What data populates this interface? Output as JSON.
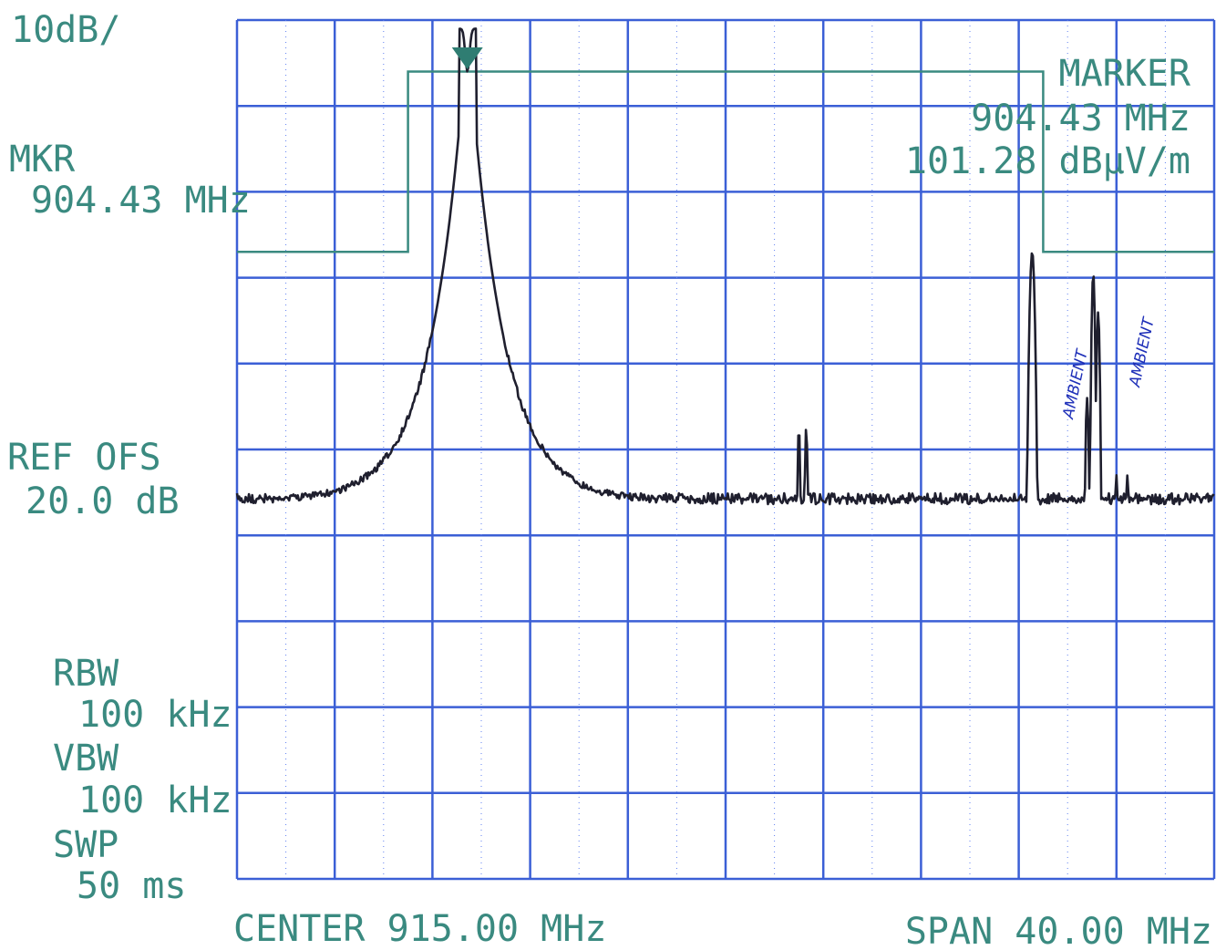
{
  "header": {
    "scale_label": "10dB/"
  },
  "left_panel": {
    "mkr_label": "MKR",
    "mkr_value": "904.43 MHz",
    "ref_ofs_label": "REF OFS",
    "ref_ofs_value": "20.0 dB",
    "rbw_label": "RBW",
    "rbw_value": "100 kHz",
    "vbw_label": "VBW",
    "vbw_value": "100 kHz",
    "swp_label": "SWP",
    "swp_value": "50 ms"
  },
  "marker_box": {
    "title": "MARKER",
    "frequency": "904.43 MHz",
    "level": "101.28 dBµV/m"
  },
  "footer": {
    "center": "CENTER 915.00 MHz",
    "span": "SPAN 40.00 MHz"
  },
  "annotations": {
    "ambient_1": "AMBIENT",
    "ambient_2": "AMBIENT"
  },
  "colors": {
    "grid": "#3b5fd6",
    "text": "#3a8a80",
    "trace": "#1f1f2e",
    "limit_line": "#3a8a80",
    "marker": "#2f7d72",
    "handwriting": "#1e2fb8"
  },
  "chart_data": {
    "type": "line",
    "title": "",
    "xlabel": "",
    "ylabel": "",
    "center_mhz": 915.0,
    "span_mhz": 40.0,
    "xlim": [
      895.0,
      935.0
    ],
    "divisions_x": 10,
    "divisions_y": 10,
    "db_per_div": 10,
    "grid": true,
    "series": [
      {
        "type": "spectrum-trace",
        "peaks": [
          {
            "freq_mhz": 903.9,
            "level_div": 0.4,
            "notch_div": 0.9
          },
          {
            "freq_mhz": 904.43,
            "level_div": 0.1,
            "main": true
          },
          {
            "freq_mhz": 918.0,
            "level_div": 4.8
          },
          {
            "freq_mhz": 918.3,
            "level_div": 4.8
          },
          {
            "freq_mhz": 927.5,
            "level_div": 2.7
          },
          {
            "freq_mhz": 930.0,
            "level_div": 2.9
          },
          {
            "freq_mhz": 929.8,
            "level_div": 4.2
          },
          {
            "freq_mhz": 931.0,
            "level_div": 5.2
          },
          {
            "freq_mhz": 931.5,
            "level_div": 5.2
          }
        ],
        "noise_floor_div": 5.6
      }
    ],
    "limit_line": [
      {
        "freq_mhz": 895.0,
        "level_div": 2.7
      },
      {
        "freq_mhz": 902.0,
        "level_div": 2.7
      },
      {
        "freq_mhz": 902.0,
        "level_div": 0.6
      },
      {
        "freq_mhz": 928.0,
        "level_div": 0.6
      },
      {
        "freq_mhz": 928.0,
        "level_div": 2.7
      },
      {
        "freq_mhz": 935.0,
        "level_div": 2.7
      }
    ],
    "marker": {
      "freq_mhz": 904.43,
      "level": "101.28 dBµV/m"
    }
  }
}
